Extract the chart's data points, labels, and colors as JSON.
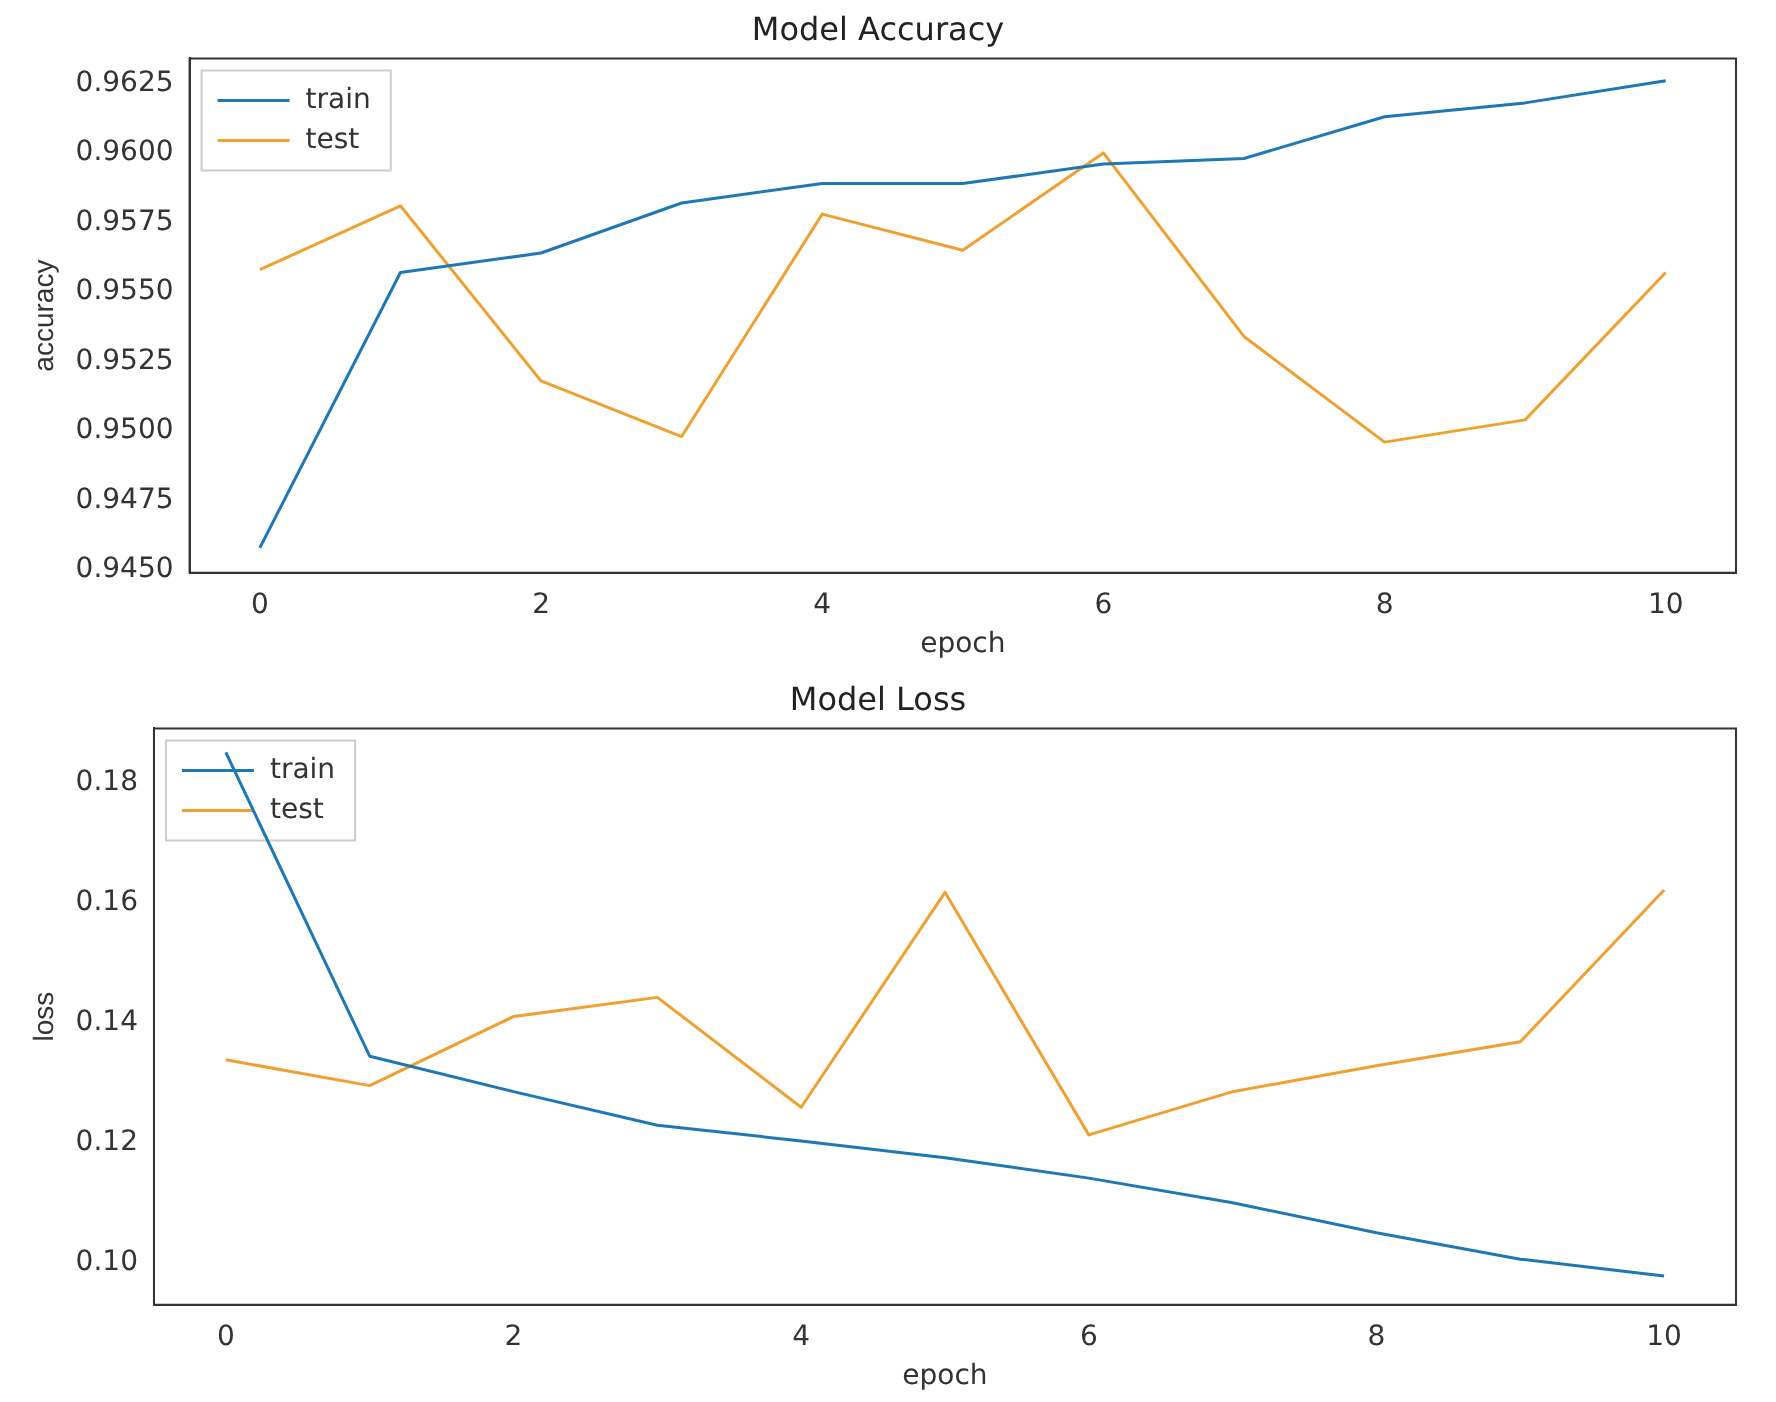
{
  "chart_data": [
    {
      "type": "line",
      "title": "Model Accuracy",
      "xlabel": "epoch",
      "ylabel": "accuracy",
      "x": [
        0,
        1,
        2,
        3,
        4,
        5,
        6,
        7,
        8,
        9,
        10
      ],
      "series": [
        {
          "name": "train",
          "color": "#1f77b4",
          "values": [
            0.9458,
            0.9557,
            0.9564,
            0.9582,
            0.9589,
            0.9589,
            0.9596,
            0.9598,
            0.9613,
            0.9618,
            0.9626
          ]
        },
        {
          "name": "test",
          "color": "#f0a030",
          "values": [
            0.9558,
            0.9581,
            0.9518,
            0.9498,
            0.9578,
            0.9565,
            0.96,
            0.9534,
            0.9496,
            0.9504,
            0.9557
          ]
        }
      ],
      "xlim": [
        -0.5,
        10.5
      ],
      "xticks": [
        0,
        2,
        4,
        6,
        8,
        10
      ],
      "ylim": [
        0.9449,
        0.9634
      ],
      "yticks": [
        {
          "value": 0.945,
          "label": "0.9450"
        },
        0.9475,
        {
          "value": 0.95,
          "label": "0.9500"
        },
        0.9525,
        {
          "value": 0.955,
          "label": "0.9550"
        },
        0.9575,
        {
          "value": 0.96,
          "label": "0.9600"
        },
        0.9625
      ],
      "grid": false,
      "legend": "top left",
      "marker": "none"
    },
    {
      "type": "line",
      "title": "Model Loss",
      "xlabel": "epoch",
      "ylabel": "loss",
      "x": [
        0,
        1,
        2,
        3,
        4,
        5,
        6,
        7,
        8,
        9,
        10
      ],
      "series": [
        {
          "name": "train",
          "color": "#1f77b4",
          "values": [
            0.185,
            0.1344,
            0.1285,
            0.1229,
            0.1203,
            0.1175,
            0.1141,
            0.11,
            0.105,
            0.1006,
            0.0978
          ]
        },
        {
          "name": "test",
          "color": "#f0a030",
          "values": [
            0.1338,
            0.1295,
            0.141,
            0.1442,
            0.1259,
            0.1617,
            0.1213,
            0.1285,
            0.1328,
            0.1368,
            0.1621
          ]
        }
      ],
      "xlim": [
        -0.5,
        10.5
      ],
      "xticks": [
        0,
        2,
        4,
        6,
        8,
        10
      ],
      "ylim": [
        0.093,
        0.189
      ],
      "yticks": [
        {
          "value": 0.1,
          "label": "0.10"
        },
        {
          "value": 0.12,
          "label": "0.12"
        },
        {
          "value": 0.14,
          "label": "0.14"
        },
        {
          "value": 0.16,
          "label": "0.16"
        },
        {
          "value": 0.18,
          "label": "0.18"
        }
      ],
      "grid": false,
      "legend": "top left",
      "marker": "none"
    }
  ]
}
